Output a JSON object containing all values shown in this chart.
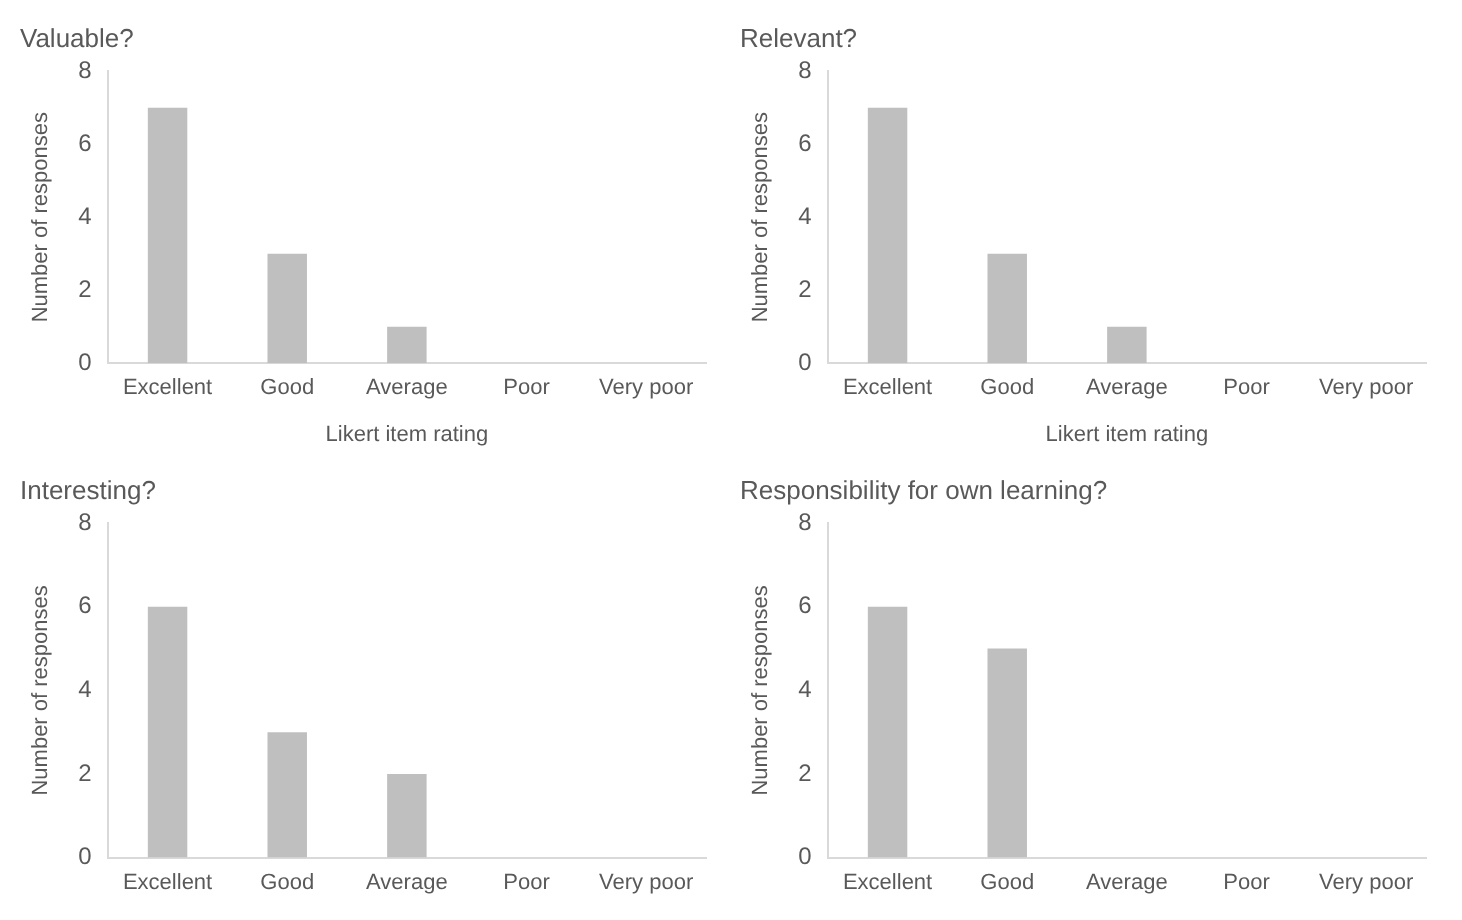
{
  "chart_data": [
    {
      "type": "bar",
      "title": "Valuable?",
      "xlabel": "Likert item rating",
      "ylabel": "Number of responses",
      "categories": [
        "Excellent",
        "Good",
        "Average",
        "Poor",
        "Very poor"
      ],
      "values": [
        7,
        3,
        1,
        0,
        0
      ],
      "color": "#bfbfbf",
      "ylim": [
        0,
        8
      ],
      "yticks": [
        0,
        2,
        4,
        6,
        8
      ],
      "grid": false,
      "legend": false
    },
    {
      "type": "bar",
      "title": "Relevant?",
      "xlabel": "Likert item rating",
      "ylabel": "Number of responses",
      "categories": [
        "Excellent",
        "Good",
        "Average",
        "Poor",
        "Very poor"
      ],
      "values": [
        7,
        3,
        1,
        0,
        0
      ],
      "color": "#bfbfbf",
      "ylim": [
        0,
        8
      ],
      "yticks": [
        0,
        2,
        4,
        6,
        8
      ],
      "grid": false,
      "legend": false
    },
    {
      "type": "bar",
      "title": "Interesting?",
      "ylabel": "Number of responses",
      "categories": [
        "Excellent",
        "Good",
        "Average",
        "Poor",
        "Very poor"
      ],
      "values": [
        6,
        3,
        2,
        0,
        0
      ],
      "color": "#bfbfbf",
      "ylim": [
        0,
        8
      ],
      "yticks": [
        0,
        2,
        4,
        6,
        8
      ],
      "grid": false,
      "legend": false
    },
    {
      "type": "bar",
      "title": "Responsibility for own learning?",
      "ylabel": "Number of responses",
      "categories": [
        "Excellent",
        "Good",
        "Average",
        "Poor",
        "Very poor"
      ],
      "values": [
        6,
        5,
        0,
        0,
        0
      ],
      "color": "#bfbfbf",
      "ylim": [
        0,
        8
      ],
      "yticks": [
        0,
        2,
        4,
        6,
        8
      ],
      "grid": false,
      "legend": false
    }
  ]
}
